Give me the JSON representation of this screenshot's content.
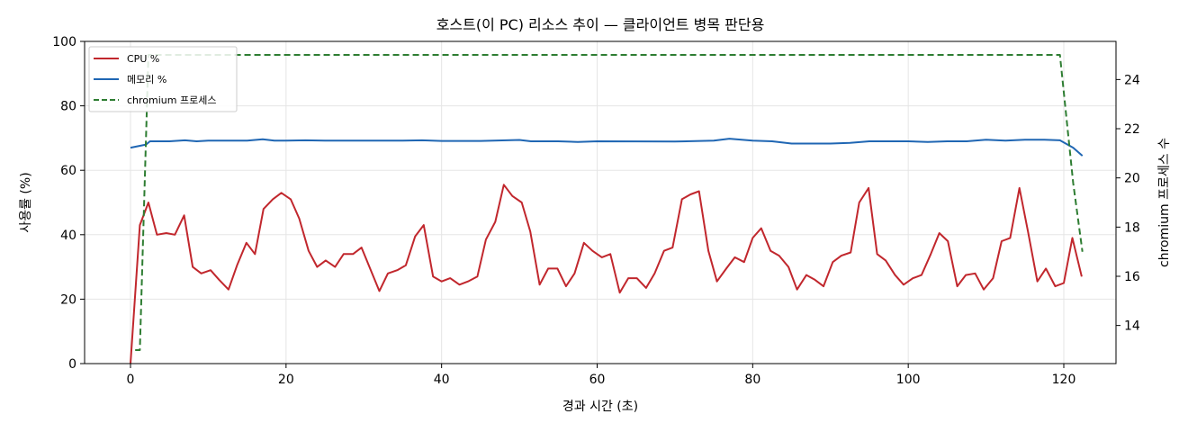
{
  "chart_data": {
    "type": "line",
    "title": "호스트(이 PC) 리소스 추이 — 클라이언트 병목 판단용",
    "xlabel": "경과 시간 (초)",
    "ylabel": "사용률 (%)",
    "y2label": "chromium 프로세스 수",
    "xlim": [
      -6,
      127
    ],
    "ylim": [
      0,
      100
    ],
    "y2lim": [
      12.45,
      25.55
    ],
    "xticks": [
      0,
      20,
      40,
      60,
      80,
      100,
      120
    ],
    "yticks": [
      0,
      20,
      40,
      60,
      80,
      100
    ],
    "y2ticks": [
      14,
      16,
      18,
      20,
      22,
      24
    ],
    "grid": true,
    "legend_position": "top-left",
    "series": [
      {
        "name": "CPU %",
        "axis": "left",
        "color": "#c1272d",
        "dash": "solid",
        "points": [
          [
            0,
            0
          ],
          [
            1.2,
            43
          ],
          [
            2.3,
            50
          ],
          [
            3.4,
            40
          ],
          [
            4.6,
            40.5
          ],
          [
            5.7,
            40
          ],
          [
            6.9,
            46
          ],
          [
            8,
            30
          ],
          [
            9.1,
            28
          ],
          [
            10.3,
            29
          ],
          [
            11.4,
            26
          ],
          [
            12.6,
            23
          ],
          [
            13.7,
            30.5
          ],
          [
            14.9,
            37.5
          ],
          [
            16,
            34
          ],
          [
            17.1,
            48
          ],
          [
            18.3,
            51
          ],
          [
            19.4,
            53
          ],
          [
            20.6,
            51
          ],
          [
            21.7,
            45
          ],
          [
            22.9,
            35
          ],
          [
            24,
            30
          ],
          [
            25.1,
            32
          ],
          [
            26.3,
            30
          ],
          [
            27.4,
            34
          ],
          [
            28.6,
            34
          ],
          [
            29.7,
            36
          ],
          [
            30.9,
            29
          ],
          [
            32,
            22.5
          ],
          [
            33.1,
            28
          ],
          [
            34.3,
            29
          ],
          [
            35.4,
            30.5
          ],
          [
            36.6,
            39.5
          ],
          [
            37.7,
            43
          ],
          [
            38.9,
            27
          ],
          [
            40,
            25.5
          ],
          [
            41.1,
            26.5
          ],
          [
            42.3,
            24.5
          ],
          [
            43.4,
            25.5
          ],
          [
            44.6,
            27
          ],
          [
            45.7,
            38.5
          ],
          [
            46.9,
            44
          ],
          [
            48,
            55.5
          ],
          [
            49.1,
            52
          ],
          [
            50.3,
            50
          ],
          [
            51.4,
            41
          ],
          [
            52.6,
            24.5
          ],
          [
            53.7,
            29.5
          ],
          [
            54.9,
            29.5
          ],
          [
            56,
            24
          ],
          [
            57.1,
            28
          ],
          [
            58.3,
            37.5
          ],
          [
            59.4,
            35
          ],
          [
            60.6,
            33
          ],
          [
            61.7,
            34
          ],
          [
            62.9,
            22
          ],
          [
            64,
            26.5
          ],
          [
            65.1,
            26.5
          ],
          [
            66.3,
            23.5
          ],
          [
            67.4,
            28
          ],
          [
            68.6,
            35
          ],
          [
            69.7,
            36
          ],
          [
            70.9,
            51
          ],
          [
            72,
            52.5
          ],
          [
            73.1,
            53.5
          ],
          [
            74.3,
            35
          ],
          [
            75.4,
            25.5
          ],
          [
            76.6,
            29.5
          ],
          [
            77.7,
            33
          ],
          [
            78.9,
            31.5
          ],
          [
            80,
            39
          ],
          [
            81.1,
            42
          ],
          [
            82.3,
            35
          ],
          [
            83.4,
            33.5
          ],
          [
            84.6,
            30
          ],
          [
            85.7,
            23
          ],
          [
            86.9,
            27.5
          ],
          [
            88,
            26
          ],
          [
            89.1,
            24
          ],
          [
            90.3,
            31.5
          ],
          [
            91.4,
            33.5
          ],
          [
            92.6,
            34.5
          ],
          [
            93.7,
            50
          ],
          [
            94.9,
            54.5
          ],
          [
            96,
            34
          ],
          [
            97.1,
            32
          ],
          [
            98.3,
            27.5
          ],
          [
            99.4,
            24.5
          ],
          [
            100.6,
            26.5
          ],
          [
            101.7,
            27.5
          ],
          [
            102.9,
            34
          ],
          [
            104,
            40.5
          ],
          [
            105.1,
            38
          ],
          [
            106.3,
            24
          ],
          [
            107.4,
            27.5
          ],
          [
            108.6,
            28
          ],
          [
            109.7,
            23
          ],
          [
            110.9,
            26.5
          ],
          [
            112,
            38
          ],
          [
            113.1,
            39
          ],
          [
            114.3,
            54.5
          ],
          [
            115.4,
            41
          ],
          [
            116.6,
            25.5
          ],
          [
            117.7,
            29.5
          ],
          [
            118.9,
            24
          ],
          [
            120,
            25
          ],
          [
            121.1,
            39
          ],
          [
            122.3,
            27
          ]
        ]
      },
      {
        "name": "메모리 %",
        "axis": "left",
        "color": "#1f66b3",
        "dash": "solid",
        "points": [
          [
            0,
            67
          ],
          [
            2,
            68
          ],
          [
            2.5,
            69
          ],
          [
            5,
            69
          ],
          [
            7,
            69.3
          ],
          [
            8.5,
            69
          ],
          [
            10,
            69.2
          ],
          [
            15,
            69.2
          ],
          [
            17,
            69.6
          ],
          [
            18.5,
            69.2
          ],
          [
            20,
            69.2
          ],
          [
            22.5,
            69.3
          ],
          [
            25,
            69.2
          ],
          [
            30,
            69.2
          ],
          [
            35,
            69.2
          ],
          [
            37.5,
            69.3
          ],
          [
            40,
            69.1
          ],
          [
            45,
            69.1
          ],
          [
            50,
            69.4
          ],
          [
            51.5,
            69
          ],
          [
            55,
            69
          ],
          [
            57.5,
            68.8
          ],
          [
            60,
            69
          ],
          [
            70,
            68.9
          ],
          [
            75,
            69.2
          ],
          [
            77,
            69.8
          ],
          [
            80,
            69.2
          ],
          [
            82.5,
            69
          ],
          [
            85,
            68.3
          ],
          [
            90,
            68.3
          ],
          [
            92.5,
            68.5
          ],
          [
            95,
            69
          ],
          [
            100,
            69
          ],
          [
            102.5,
            68.8
          ],
          [
            105,
            69
          ],
          [
            107.5,
            69
          ],
          [
            110,
            69.5
          ],
          [
            112.5,
            69.2
          ],
          [
            115,
            69.5
          ],
          [
            117.5,
            69.5
          ],
          [
            119.5,
            69.3
          ],
          [
            121.2,
            67
          ],
          [
            122.4,
            64.5
          ]
        ]
      },
      {
        "name": "chromium 프로세스",
        "axis": "right",
        "color": "#2e7d32",
        "dash": "dashed",
        "points": [
          [
            0.6,
            13
          ],
          [
            1.2,
            13
          ],
          [
            2.3,
            25
          ],
          [
            119.5,
            25
          ],
          [
            121.2,
            19.8
          ],
          [
            122.4,
            17
          ]
        ]
      }
    ]
  }
}
